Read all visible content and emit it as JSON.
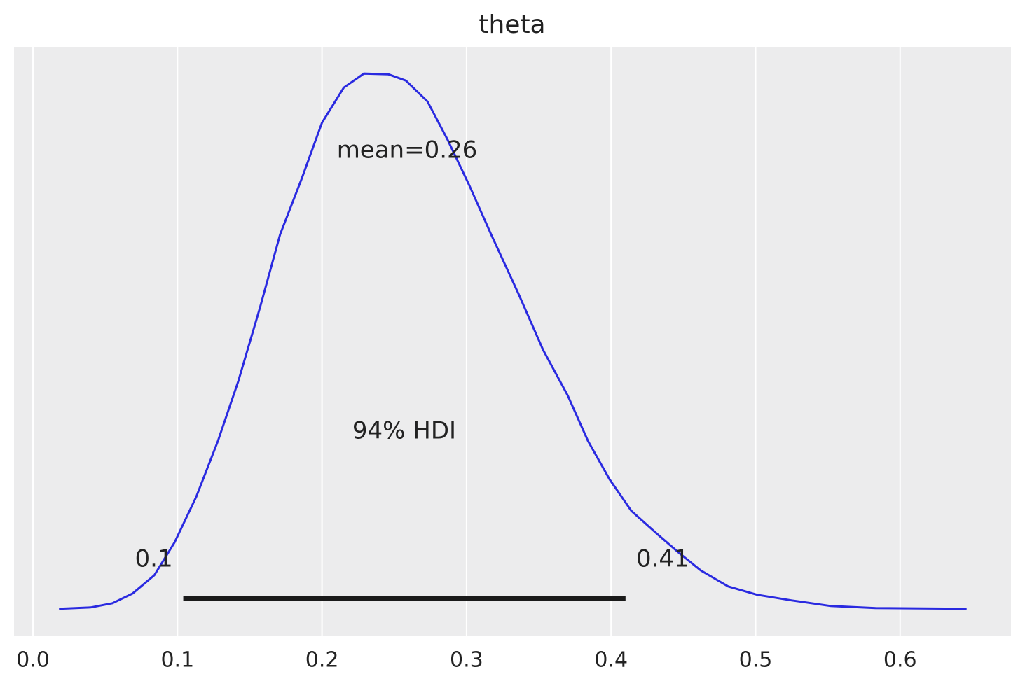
{
  "chart_data": {
    "type": "line",
    "title": "theta",
    "x": [
      0.018,
      0.04,
      0.055,
      0.069,
      0.084,
      0.098,
      0.113,
      0.128,
      0.142,
      0.157,
      0.171,
      0.186,
      0.2,
      0.215,
      0.229,
      0.246,
      0.258,
      0.273,
      0.287,
      0.302,
      0.317,
      0.336,
      0.353,
      0.37,
      0.384,
      0.399,
      0.414,
      0.433,
      0.447,
      0.462,
      0.481,
      0.501,
      0.525,
      0.552,
      0.583,
      0.646
    ],
    "series": [
      {
        "color": "#2a2ae0",
        "values": [
          0,
          0.013,
          0.052,
          0.144,
          0.314,
          0.621,
          1.046,
          1.569,
          2.124,
          2.81,
          3.497,
          4.02,
          4.542,
          4.869,
          5.0,
          4.993,
          4.935,
          4.739,
          4.379,
          3.954,
          3.497,
          2.941,
          2.418,
          1.993,
          1.569,
          1.209,
          0.915,
          0.686,
          0.523,
          0.359,
          0.209,
          0.131,
          0.078,
          0.026,
          0.007,
          0
        ]
      }
    ],
    "xlim": [
      -0.0131,
      0.6767
    ],
    "ylim": [
      -0.25,
      5.25
    ],
    "xticks": [
      {
        "value": 0,
        "label": "0.0"
      },
      0.1,
      0.2,
      0.3,
      0.4,
      0.5,
      0.6
    ],
    "grid": true,
    "mean_label": "mean=0.26",
    "hdi": {
      "label": "94% HDI",
      "values": [
        0.104,
        0.41
      ],
      "value_labels": [
        "0.1",
        "0.41"
      ],
      "color": "#1a1a1a"
    }
  }
}
